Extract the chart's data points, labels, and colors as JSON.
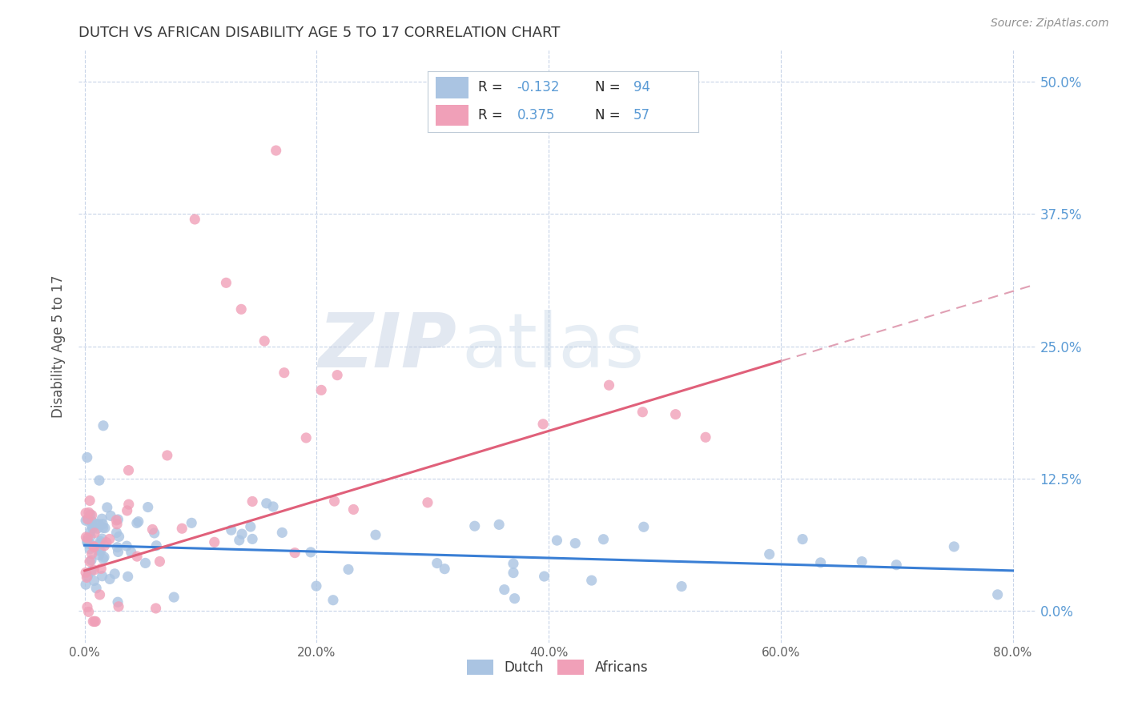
{
  "title": "DUTCH VS AFRICAN DISABILITY AGE 5 TO 17 CORRELATION CHART",
  "source": "Source: ZipAtlas.com",
  "ylabel": "Disability Age 5 to 17",
  "xlabel_ticks": [
    "0.0%",
    "20.0%",
    "40.0%",
    "60.0%",
    "80.0%"
  ],
  "xlabel_vals": [
    0.0,
    0.2,
    0.4,
    0.6,
    0.8
  ],
  "ylabel_ticks": [
    "0.0%",
    "12.5%",
    "25.0%",
    "37.5%",
    "50.0%"
  ],
  "ylabel_vals": [
    0.0,
    0.125,
    0.25,
    0.375,
    0.5
  ],
  "xlim": [
    -0.005,
    0.82
  ],
  "ylim": [
    -0.03,
    0.53
  ],
  "dutch_color": "#aac4e2",
  "african_color": "#f0a0b8",
  "dutch_R": -0.132,
  "dutch_N": 94,
  "african_R": 0.375,
  "african_N": 57,
  "trend_dutch_color": "#3a7fd5",
  "trend_african_color": "#e0607a",
  "trend_african_dashed_color": "#e0a0b4",
  "background_color": "#ffffff",
  "grid_color": "#c8d4e8",
  "title_color": "#383838",
  "source_color": "#909090",
  "axis_label_color": "#505050",
  "right_axis_color": "#5b9bd5",
  "watermark_zip_color": "#c0cce0",
  "watermark_atlas_color": "#b8cce0",
  "legend_border_color": "#c0ccd8",
  "legend_text_color": "#282828",
  "legend_value_color": "#5b9bd5"
}
